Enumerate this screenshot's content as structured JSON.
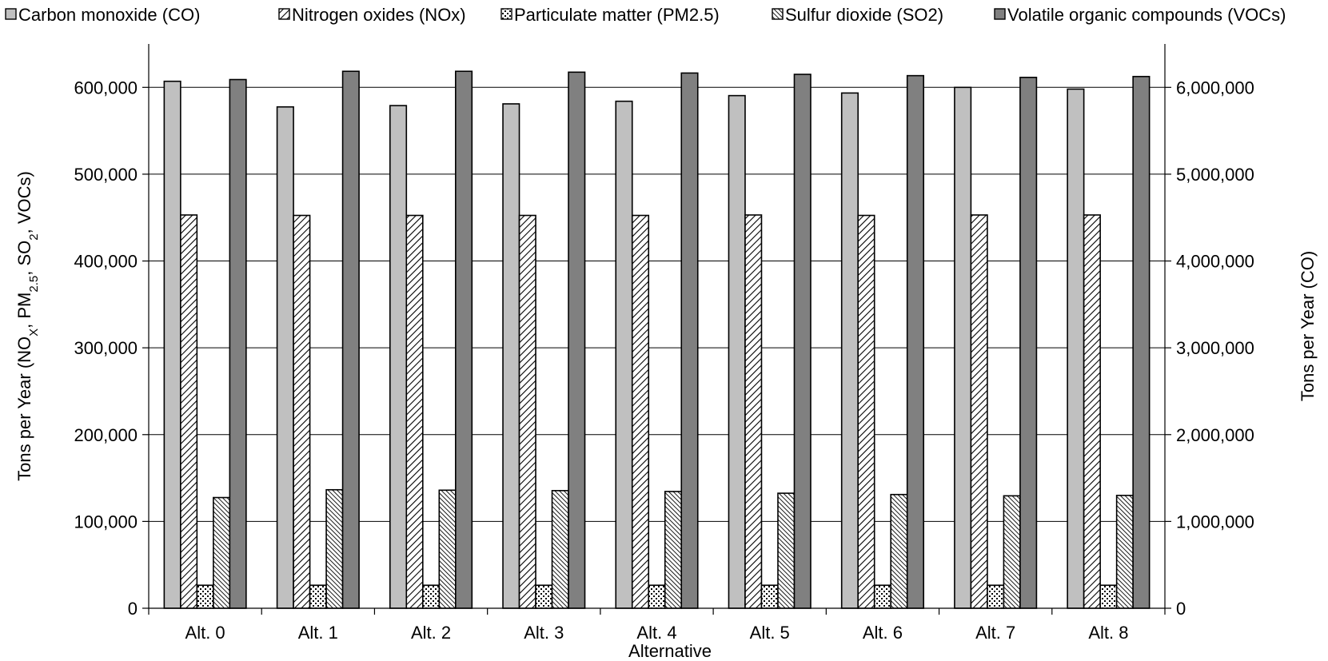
{
  "chart_data": {
    "type": "bar",
    "categories": [
      "Alt. 0",
      "Alt. 1",
      "Alt. 2",
      "Alt. 3",
      "Alt. 4",
      "Alt. 5",
      "Alt. 6",
      "Alt. 7",
      "Alt. 8"
    ],
    "series": [
      {
        "name": "Carbon monoxide (CO)",
        "axis": "right",
        "pattern": "solid-light-gray",
        "values": [
          6070000,
          5775000,
          5790000,
          5810000,
          5840000,
          5905000,
          5935000,
          6000000,
          5980000
        ]
      },
      {
        "name": "Nitrogen oxides (NOx)",
        "axis": "left",
        "pattern": "diagonal-hatch",
        "values": [
          453000,
          452500,
          452500,
          452500,
          452500,
          453000,
          452500,
          453000,
          453000
        ]
      },
      {
        "name": "Particulate matter (PM2.5)",
        "axis": "left",
        "pattern": "dotted",
        "values": [
          26500,
          26500,
          26500,
          26500,
          26500,
          26500,
          26500,
          26500,
          26500
        ]
      },
      {
        "name": "Sulfur dioxide (SO2)",
        "axis": "left",
        "pattern": "dense-diagonal-hatch",
        "values": [
          127500,
          136500,
          136000,
          135500,
          134500,
          132500,
          131000,
          129500,
          130000
        ]
      },
      {
        "name": "Volatile organic compounds (VOCs)",
        "axis": "left",
        "pattern": "solid-dark-gray",
        "values": [
          609000,
          618500,
          618500,
          617500,
          616500,
          615000,
          613500,
          611500,
          612500
        ]
      }
    ],
    "xlabel": "Alternative",
    "ylabel_left_parts": [
      "Tons per Year (NO",
      "X",
      ", PM",
      "2.5",
      ", SO",
      "2",
      ", VOCs)"
    ],
    "ylabel_right": "Tons per Year (CO)",
    "ylim_left": [
      0,
      650000
    ],
    "ylim_right": [
      0,
      6500000
    ],
    "yticks_left": [
      "0",
      "100,000",
      "200,000",
      "300,000",
      "400,000",
      "500,000",
      "600,000"
    ],
    "yticks_right": [
      "0",
      "1,000,000",
      "2,000,000",
      "3,000,000",
      "4,000,000",
      "5,000,000",
      "6,000,000"
    ],
    "grid": true,
    "legend_position": "top",
    "colors": {
      "co": "#c0c0c0",
      "vocs": "#808080",
      "border": "#000000"
    }
  }
}
